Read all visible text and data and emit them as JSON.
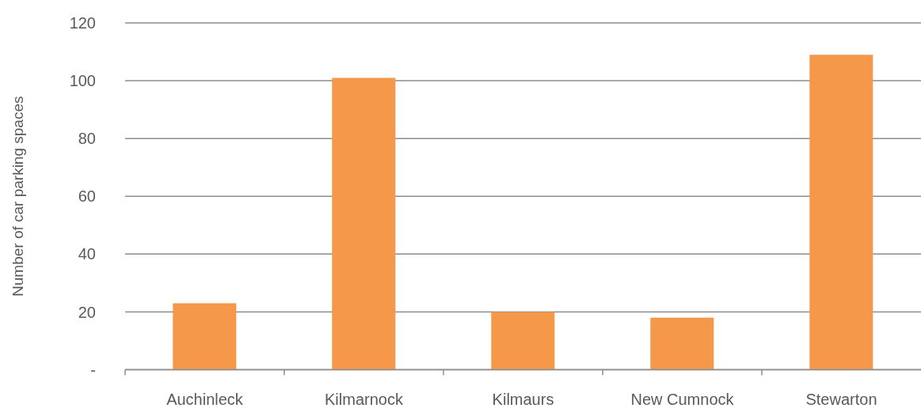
{
  "chart_data": {
    "type": "bar",
    "ylabel": "Number of car parking spaces",
    "categories": [
      "Auchinleck",
      "Kilmarnock",
      "Kilmaurs",
      "New Cumnock",
      "Stewarton"
    ],
    "values": [
      23,
      101,
      20,
      18,
      109
    ],
    "color": "#f59849",
    "ylim": [
      0,
      120
    ],
    "yticks": [
      {
        "value": 0,
        "label": "-"
      },
      20,
      40,
      60,
      80,
      100,
      120
    ],
    "grid": "y"
  }
}
